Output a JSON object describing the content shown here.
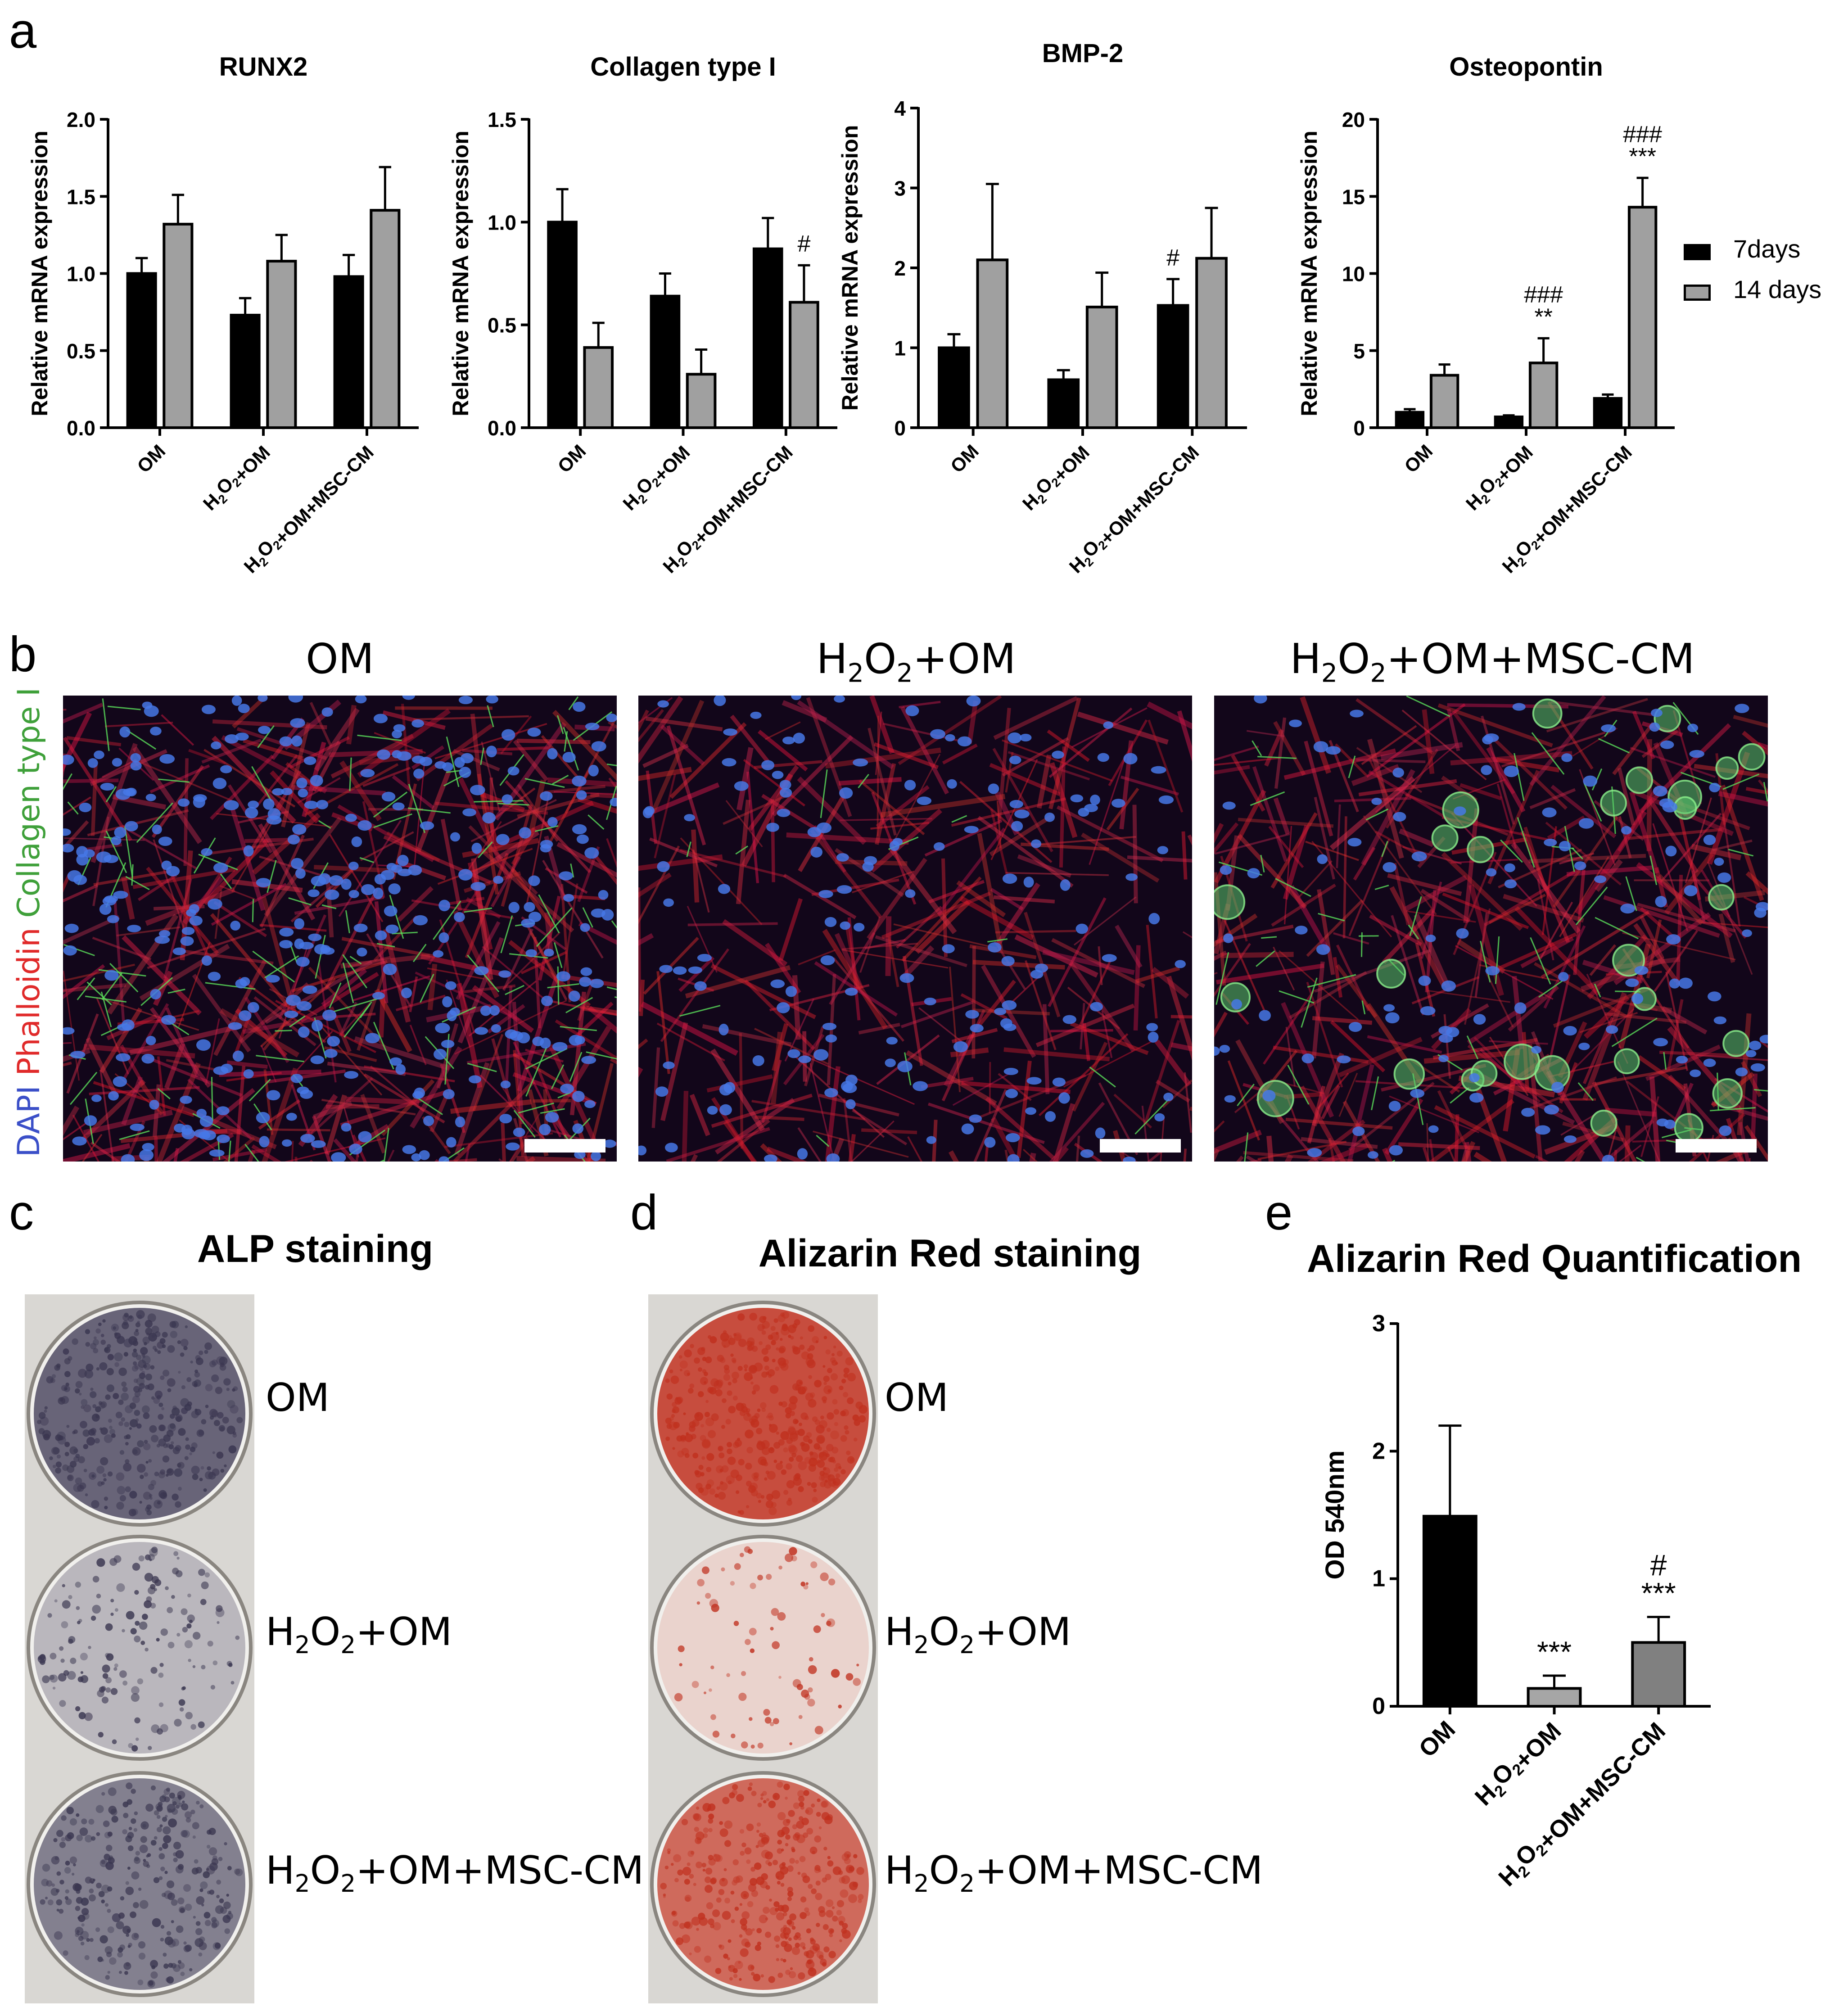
{
  "panels": {
    "a": "a",
    "b": "b",
    "c": "c",
    "d": "d",
    "e": "e"
  },
  "colors": {
    "day7": "#000000",
    "day14": "#a0a0a0",
    "bar_e_om": "#000000",
    "bar_e_h2o2": "#a6a6a6",
    "bar_e_msc": "#808080",
    "alp_stain": "#3a3650",
    "alizarin_stain": "#c0301e"
  },
  "chart_data": [
    {
      "type": "bar",
      "title": "RUNX2",
      "ylabel": "Relative mRNA expression",
      "categories": [
        "OM",
        "H2O2+OM",
        "H2O2+OM+MSC-CM"
      ],
      "ylim": [
        0,
        2.0
      ],
      "yticks": [
        0.0,
        0.5,
        1.0,
        1.5,
        2.0
      ],
      "ytick_labels": [
        "0.0",
        "0.5",
        "1.0",
        "1.5",
        "2.0"
      ],
      "series": [
        {
          "name": "7days",
          "values": [
            1.0,
            0.73,
            0.98
          ],
          "errors": [
            0.1,
            0.11,
            0.14
          ]
        },
        {
          "name": "14 days",
          "values": [
            1.32,
            1.08,
            1.41
          ],
          "errors": [
            0.19,
            0.17,
            0.28
          ]
        }
      ],
      "annotations": []
    },
    {
      "type": "bar",
      "title": "Collagen type I",
      "ylabel": "Relative mRNA expression",
      "categories": [
        "OM",
        "H2O2+OM",
        "H2O2+OM+MSC-CM"
      ],
      "ylim": [
        0,
        1.5
      ],
      "yticks": [
        0.0,
        0.5,
        1.0,
        1.5
      ],
      "ytick_labels": [
        "0.0",
        "0.5",
        "1.0",
        "1.5"
      ],
      "series": [
        {
          "name": "7days",
          "values": [
            1.0,
            0.64,
            0.87
          ],
          "errors": [
            0.16,
            0.11,
            0.15
          ]
        },
        {
          "name": "14 days",
          "values": [
            0.39,
            0.26,
            0.61
          ],
          "errors": [
            0.12,
            0.12,
            0.18
          ]
        }
      ],
      "annotations": [
        {
          "category": 2,
          "series": 1,
          "lines": [
            "#"
          ]
        }
      ]
    },
    {
      "type": "bar",
      "title": "BMP-2",
      "ylabel": "Relative mRNA expression",
      "categories": [
        "OM",
        "H2O2+OM",
        "H2O2+OM+MSC-CM"
      ],
      "ylim": [
        0,
        4
      ],
      "yticks": [
        0,
        1,
        2,
        3,
        4
      ],
      "ytick_labels": [
        "0",
        "1",
        "2",
        "3",
        "4"
      ],
      "series": [
        {
          "name": "7days",
          "values": [
            1.0,
            0.6,
            1.53
          ],
          "errors": [
            0.17,
            0.12,
            0.33
          ]
        },
        {
          "name": "14 days",
          "values": [
            2.1,
            1.51,
            2.12
          ],
          "errors": [
            0.95,
            0.43,
            0.63
          ]
        }
      ],
      "annotations": [
        {
          "category": 2,
          "series": 0,
          "lines": [
            "#"
          ]
        }
      ]
    },
    {
      "type": "bar",
      "title": "Osteopontin",
      "ylabel": "Relative mRNA expression",
      "categories": [
        "OM",
        "H2O2+OM",
        "H2O2+OM+MSC-CM"
      ],
      "ylim": [
        0,
        20
      ],
      "yticks": [
        0,
        5,
        10,
        15,
        20
      ],
      "ytick_labels": [
        "0",
        "5",
        "10",
        "15",
        "20"
      ],
      "series": [
        {
          "name": "7days",
          "values": [
            1.0,
            0.7,
            1.9
          ],
          "errors": [
            0.2,
            0.1,
            0.25
          ]
        },
        {
          "name": "14 days",
          "values": [
            3.4,
            4.2,
            14.3
          ],
          "errors": [
            0.7,
            1.6,
            1.9
          ]
        }
      ],
      "annotations": [
        {
          "category": 1,
          "series": 1,
          "lines": [
            "###",
            "**"
          ]
        },
        {
          "category": 2,
          "series": 1,
          "lines": [
            "###",
            "***"
          ]
        }
      ]
    },
    {
      "type": "bar",
      "title": "Alizarin Red Quantification",
      "ylabel": "OD 540nm",
      "categories": [
        "OM",
        "H2O2+OM",
        "H2O2+OM+MSC-CM"
      ],
      "ylim": [
        0,
        3
      ],
      "yticks": [
        0,
        1,
        2,
        3
      ],
      "ytick_labels": [
        "0",
        "1",
        "2",
        "3"
      ],
      "series": [
        {
          "values": [
            1.49,
            0.14,
            0.5
          ],
          "errors": [
            0.71,
            0.1,
            0.2
          ]
        }
      ],
      "annotations": [
        {
          "category": 1,
          "series": 0,
          "lines": [
            "***"
          ]
        },
        {
          "category": 2,
          "series": 0,
          "lines": [
            "#",
            "***"
          ]
        }
      ]
    }
  ],
  "legend": {
    "items": [
      "7days",
      "14 days"
    ]
  },
  "micrographs": {
    "titles": [
      "OM",
      "H2O2+OM",
      "H2O2+OM+MSC-CM"
    ],
    "stain_label": {
      "dapi": "DAPI",
      "phalloidin": "Phalloidin",
      "collagen": "Collagen type I"
    }
  },
  "staining": {
    "alp_title": "ALP staining",
    "alizarin_title": "Alizarin Red staining",
    "well_labels": [
      "OM",
      "H2O2+OM",
      "H2O2+OM+MSC-CM"
    ]
  }
}
